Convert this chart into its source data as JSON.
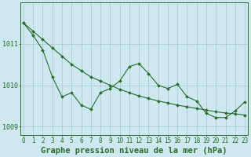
{
  "line1": [
    1011.5,
    1011.2,
    1010.85,
    1010.2,
    1009.72,
    1009.82,
    1009.52,
    1009.42,
    1009.82,
    1009.92,
    1010.1,
    1010.45,
    1010.52,
    1010.28,
    1010.0,
    1009.92,
    1010.02,
    1009.72,
    1009.62,
    1009.32,
    1009.22,
    1009.22,
    1009.38,
    1009.6
  ],
  "line2": [
    1011.5,
    1011.3,
    1011.1,
    1010.9,
    1010.7,
    1010.5,
    1010.35,
    1010.2,
    1010.1,
    1010.0,
    1009.9,
    1009.82,
    1009.74,
    1009.68,
    1009.62,
    1009.57,
    1009.52,
    1009.48,
    1009.44,
    1009.4,
    1009.36,
    1009.33,
    1009.31,
    1009.28
  ],
  "x": [
    0,
    1,
    2,
    3,
    4,
    5,
    6,
    7,
    8,
    9,
    10,
    11,
    12,
    13,
    14,
    15,
    16,
    17,
    18,
    19,
    20,
    21,
    22,
    23
  ],
  "line_color": "#2d6a2d",
  "bg_color": "#cde8ee",
  "grid_color": "#aaccd4",
  "xlabel": "Graphe pression niveau de la mer (hPa)",
  "ylim": [
    1008.8,
    1012.0
  ],
  "yticks": [
    1009,
    1010,
    1011
  ],
  "xtick_labels": [
    "0",
    "1",
    "2",
    "3",
    "4",
    "5",
    "6",
    "7",
    "8",
    "9",
    "10",
    "11",
    "12",
    "13",
    "14",
    "15",
    "16",
    "17",
    "18",
    "19",
    "20",
    "21",
    "22",
    "23"
  ],
  "label_fontsize": 6,
  "xlabel_fontsize": 7.5
}
